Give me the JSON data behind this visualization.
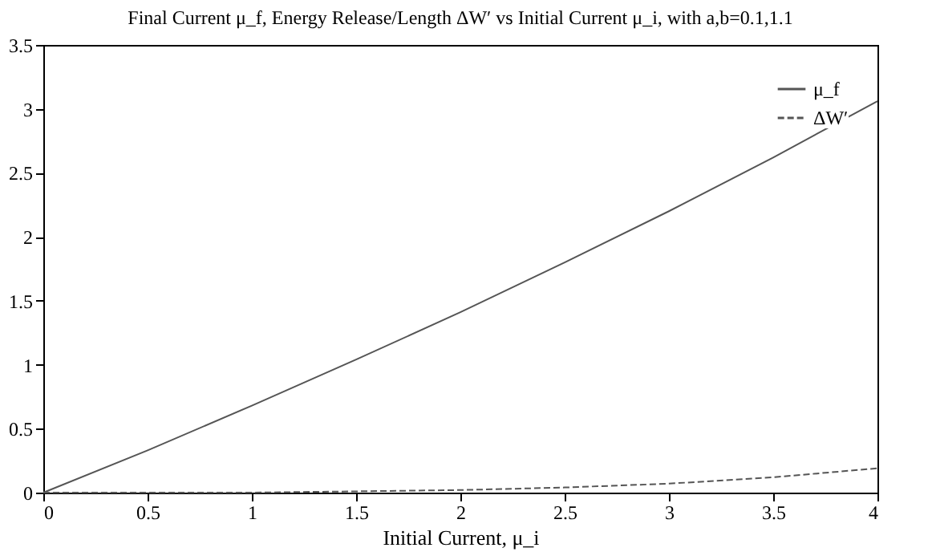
{
  "chart_data": {
    "type": "line",
    "title": "Final Current μ_f, Energy Release/Length ΔW′ vs Initial Current μ_i, with a,b=0.1,1.1",
    "xlabel": "Initial Current, μ_i",
    "x": [
      0,
      0.5,
      1,
      1.5,
      2,
      2.5,
      3,
      3.5,
      4
    ],
    "series": [
      {
        "name": "μ_f",
        "color": "#555555",
        "line_style": "solid",
        "values": [
          0,
          0.33,
          0.68,
          1.04,
          1.41,
          1.8,
          2.2,
          2.62,
          3.06
        ]
      },
      {
        "name": "ΔW′",
        "color": "#555555",
        "line_style": "dashed",
        "values": [
          0,
          0,
          0,
          0.01,
          0.02,
          0.04,
          0.07,
          0.12,
          0.19
        ]
      }
    ],
    "xlim": [
      0,
      4
    ],
    "xticks": [
      0,
      0.5,
      1,
      1.5,
      2,
      2.5,
      3,
      3.5,
      4
    ],
    "ylim": [
      0,
      3.5
    ],
    "yticks": [
      0,
      0.5,
      1,
      1.5,
      2,
      2.5,
      3,
      3.5
    ],
    "grid": false,
    "legend": "top right",
    "marker": "none"
  }
}
